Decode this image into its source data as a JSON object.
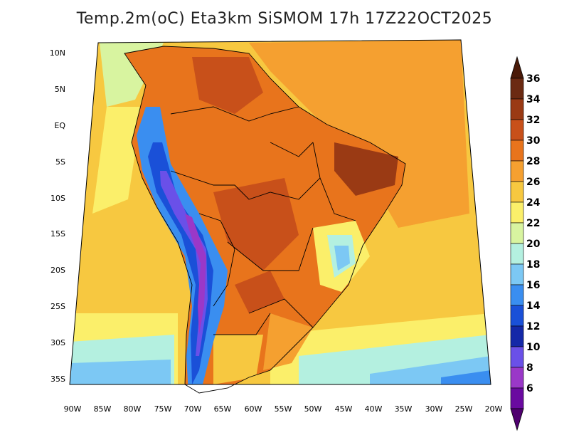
{
  "title": "Temp.2m(oC) Eta3km SiSMOM 17h 17Z22OCT2025",
  "map": {
    "variable": "Temp.2m(oC)",
    "model": "Eta3km SiSMOM",
    "lat_labels": [
      "10N",
      "5N",
      "EQ",
      "5S",
      "10S",
      "15S",
      "20S",
      "25S",
      "30S",
      "35S"
    ],
    "lon_labels": [
      "90W",
      "85W",
      "80W",
      "75W",
      "70W",
      "65W",
      "60W",
      "55W",
      "50W",
      "45W",
      "40W",
      "35W",
      "30W",
      "25W",
      "20W"
    ]
  },
  "colorbar": {
    "labels": [
      "36",
      "34",
      "32",
      "30",
      "28",
      "26",
      "24",
      "22",
      "20",
      "18",
      "16",
      "14",
      "12",
      "10",
      "8",
      "6"
    ],
    "colors": [
      "#6b2a12",
      "#9a3a14",
      "#c8501a",
      "#e8741c",
      "#f5a030",
      "#f7c840",
      "#fbef6a",
      "#d8f4a0",
      "#b4f0e0",
      "#7cc8f4",
      "#3a8ef0",
      "#1a50d8",
      "#1428a8",
      "#6a50e8",
      "#9a38c8",
      "#6a0aa0"
    ],
    "top_color": "#4a1a08",
    "bottom_color": "#500070"
  }
}
